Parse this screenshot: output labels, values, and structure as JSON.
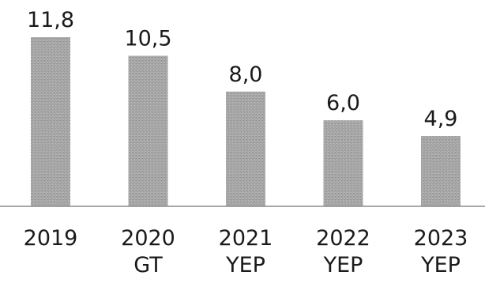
{
  "chart_data": {
    "type": "bar",
    "categories": [
      [
        "2019"
      ],
      [
        "2020",
        "GT"
      ],
      [
        "2021",
        "YEP"
      ],
      [
        "2022",
        "YEP"
      ],
      [
        "2023",
        "YEP"
      ]
    ],
    "values": [
      11.8,
      10.5,
      8.0,
      6.0,
      4.9
    ],
    "data_labels": [
      "11,8",
      "10,5",
      "8,0",
      "6,0",
      "4,9"
    ],
    "title": "",
    "xlabel": "",
    "ylabel": "",
    "ylim": [
      0,
      12
    ],
    "grid": false,
    "legend": "none",
    "colors": {
      "bar": "#a6a6a6",
      "text": "#1a1a1a",
      "axis": "#8c8c8c"
    }
  }
}
